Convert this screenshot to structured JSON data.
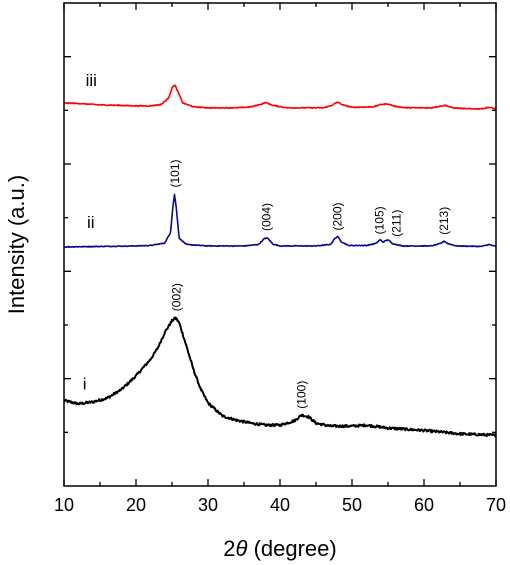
{
  "chart_data": {
    "type": "line",
    "xlabel_prefix": "2",
    "xlabel_symbol": "θ",
    "xlabel_suffix": " (degree)",
    "ylabel": "Intensity (a.u.)",
    "xlim": [
      10,
      70
    ],
    "ylim": [
      0,
      1
    ],
    "x_ticks": [
      "10",
      "20",
      "30",
      "40",
      "50",
      "60",
      "70"
    ],
    "y_ticks_labeled": false,
    "grid": false,
    "colors": {
      "i": "#000000",
      "ii": "#0a0a8c",
      "iii": "#ff0000"
    },
    "series": [
      {
        "name": "i",
        "baseline_right": 0.105,
        "points": [
          [
            10,
            0.177
          ],
          [
            12,
            0.17
          ],
          [
            14,
            0.174
          ],
          [
            16,
            0.182
          ],
          [
            18,
            0.2
          ],
          [
            20,
            0.228
          ],
          [
            22,
            0.262
          ],
          [
            23,
            0.285
          ],
          [
            24,
            0.318
          ],
          [
            25,
            0.342
          ],
          [
            25.5,
            0.348
          ],
          [
            26,
            0.338
          ],
          [
            27,
            0.29
          ],
          [
            28,
            0.24
          ],
          [
            29,
            0.2
          ],
          [
            30,
            0.172
          ],
          [
            32,
            0.145
          ],
          [
            34,
            0.136
          ],
          [
            36,
            0.13
          ],
          [
            38,
            0.126
          ],
          [
            40,
            0.126
          ],
          [
            42,
            0.135
          ],
          [
            43,
            0.147
          ],
          [
            44,
            0.143
          ],
          [
            45,
            0.13
          ],
          [
            47,
            0.124
          ],
          [
            50,
            0.124
          ],
          [
            52,
            0.126
          ],
          [
            55,
            0.12
          ],
          [
            60,
            0.115
          ],
          [
            65,
            0.108
          ],
          [
            70,
            0.105
          ]
        ]
      },
      {
        "name": "ii",
        "points": [
          [
            10,
            0.495
          ],
          [
            15,
            0.496
          ],
          [
            20,
            0.497
          ],
          [
            22,
            0.498
          ],
          [
            24,
            0.503
          ],
          [
            24.8,
            0.525
          ],
          [
            25.1,
            0.575
          ],
          [
            25.35,
            0.604
          ],
          [
            25.6,
            0.575
          ],
          [
            26,
            0.513
          ],
          [
            27,
            0.5
          ],
          [
            30,
            0.497
          ],
          [
            35,
            0.497
          ],
          [
            37,
            0.5
          ],
          [
            37.9,
            0.513
          ],
          [
            38.3,
            0.513
          ],
          [
            39,
            0.501
          ],
          [
            40,
            0.497
          ],
          [
            45,
            0.497
          ],
          [
            47,
            0.5
          ],
          [
            47.6,
            0.512
          ],
          [
            48,
            0.517
          ],
          [
            48.5,
            0.506
          ],
          [
            49.5,
            0.498
          ],
          [
            52,
            0.498
          ],
          [
            53.3,
            0.502
          ],
          [
            53.9,
            0.51
          ],
          [
            54.3,
            0.505
          ],
          [
            55,
            0.51
          ],
          [
            55.6,
            0.502
          ],
          [
            57,
            0.497
          ],
          [
            61,
            0.497
          ],
          [
            62.3,
            0.502
          ],
          [
            62.8,
            0.507
          ],
          [
            63.3,
            0.502
          ],
          [
            64.5,
            0.497
          ],
          [
            68,
            0.496
          ],
          [
            69,
            0.5
          ],
          [
            70,
            0.496
          ]
        ]
      },
      {
        "name": "iii",
        "points": [
          [
            10,
            0.793
          ],
          [
            12,
            0.792
          ],
          [
            15,
            0.789
          ],
          [
            18,
            0.788
          ],
          [
            20,
            0.787
          ],
          [
            22,
            0.787
          ],
          [
            23.5,
            0.79
          ],
          [
            24.5,
            0.803
          ],
          [
            25.1,
            0.827
          ],
          [
            25.4,
            0.83
          ],
          [
            25.8,
            0.817
          ],
          [
            26.5,
            0.793
          ],
          [
            28,
            0.785
          ],
          [
            30,
            0.783
          ],
          [
            34,
            0.783
          ],
          [
            36,
            0.785
          ],
          [
            37.5,
            0.791
          ],
          [
            38,
            0.794
          ],
          [
            39,
            0.788
          ],
          [
            41,
            0.783
          ],
          [
            46,
            0.783
          ],
          [
            47.2,
            0.788
          ],
          [
            48,
            0.795
          ],
          [
            48.7,
            0.789
          ],
          [
            50,
            0.784
          ],
          [
            53,
            0.785
          ],
          [
            54,
            0.79
          ],
          [
            55,
            0.791
          ],
          [
            56,
            0.786
          ],
          [
            57.5,
            0.783
          ],
          [
            61,
            0.783
          ],
          [
            62.5,
            0.787
          ],
          [
            63,
            0.788
          ],
          [
            64,
            0.783
          ],
          [
            66,
            0.781
          ],
          [
            68,
            0.781
          ],
          [
            69,
            0.784
          ],
          [
            70,
            0.781
          ]
        ]
      }
    ],
    "series_labels": [
      {
        "text": "iii",
        "x": 13,
        "y": 0.828
      },
      {
        "text": "ii",
        "x": 13.2,
        "y": 0.534
      },
      {
        "text": "i",
        "x": 12.6,
        "y": 0.2
      }
    ],
    "annotations": [
      {
        "text": "(101)",
        "x": 25.4,
        "y": 0.618
      },
      {
        "text": "(004)",
        "x": 38.1,
        "y": 0.528
      },
      {
        "text": "(200)",
        "x": 48.0,
        "y": 0.529
      },
      {
        "text": "(105)",
        "x": 53.8,
        "y": 0.521
      },
      {
        "text": "(211)",
        "x": 56.2,
        "y": 0.516
      },
      {
        "text": "(213)",
        "x": 62.8,
        "y": 0.52
      },
      {
        "text": "(002)",
        "x": 25.6,
        "y": 0.362
      },
      {
        "text": "(100)",
        "x": 43.0,
        "y": 0.16
      }
    ]
  }
}
